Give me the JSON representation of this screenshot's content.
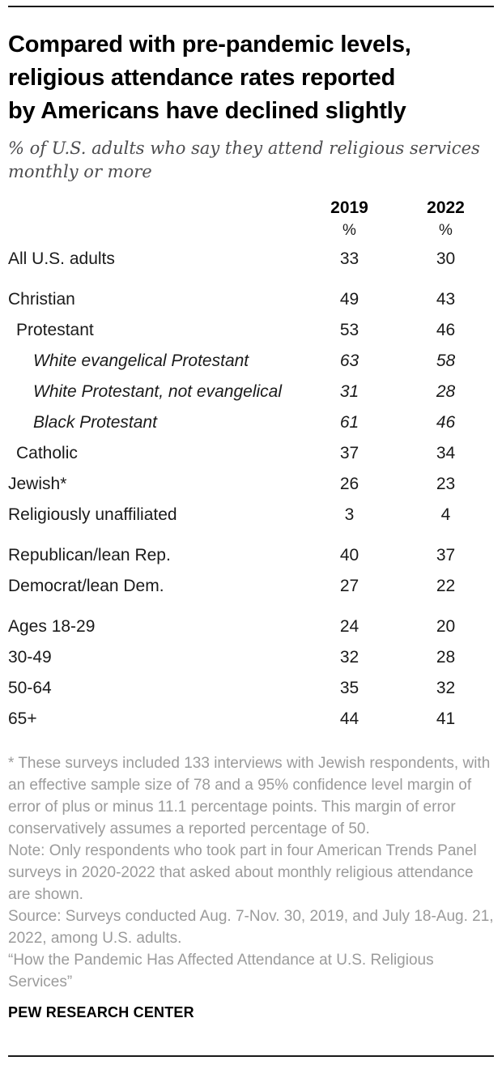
{
  "header": {
    "title_lines": [
      "Compared with pre-pandemic levels,",
      "religious attendance rates reported",
      "by Americans have declined slightly"
    ],
    "subtitle": "% of U.S. adults who say they attend religious services monthly or more"
  },
  "table": {
    "columns": [
      "2019",
      "2022"
    ],
    "percent_symbol": "%",
    "rows": [
      {
        "label": "All U.S. adults",
        "indent": 0,
        "italic": false,
        "group_start": false,
        "values": [
          33,
          30
        ]
      },
      {
        "label": "Christian",
        "indent": 0,
        "italic": false,
        "group_start": true,
        "values": [
          49,
          43
        ]
      },
      {
        "label": "Protestant",
        "indent": 1,
        "italic": false,
        "group_start": false,
        "values": [
          53,
          46
        ]
      },
      {
        "label": "White evangelical Protestant",
        "indent": 2,
        "italic": true,
        "group_start": false,
        "values": [
          63,
          58
        ]
      },
      {
        "label": "White Protestant, not evangelical",
        "indent": 2,
        "italic": true,
        "group_start": false,
        "values": [
          31,
          28
        ]
      },
      {
        "label": "Black Protestant",
        "indent": 2,
        "italic": true,
        "group_start": false,
        "values": [
          61,
          46
        ]
      },
      {
        "label": "Catholic",
        "indent": 1,
        "italic": false,
        "group_start": false,
        "values": [
          37,
          34
        ]
      },
      {
        "label": "Jewish*",
        "indent": 0,
        "italic": false,
        "group_start": false,
        "values": [
          26,
          23
        ]
      },
      {
        "label": "Religiously unaffiliated",
        "indent": 0,
        "italic": false,
        "group_start": false,
        "values": [
          3,
          4
        ]
      },
      {
        "label": "Republican/lean Rep.",
        "indent": 0,
        "italic": false,
        "group_start": true,
        "values": [
          40,
          37
        ]
      },
      {
        "label": "Democrat/lean Dem.",
        "indent": 0,
        "italic": false,
        "group_start": false,
        "values": [
          27,
          22
        ]
      },
      {
        "label": "Ages 18-29",
        "indent": 0,
        "italic": false,
        "group_start": true,
        "values": [
          24,
          20
        ]
      },
      {
        "label": "30-49",
        "indent": 0,
        "italic": false,
        "group_start": false,
        "values": [
          32,
          28
        ]
      },
      {
        "label": "50-64",
        "indent": 0,
        "italic": false,
        "group_start": false,
        "values": [
          35,
          32
        ]
      },
      {
        "label": "65+",
        "indent": 0,
        "italic": false,
        "group_start": false,
        "values": [
          44,
          41
        ]
      }
    ]
  },
  "footnotes": {
    "paragraphs": [
      "* These surveys included 133 interviews with Jewish respondents, with an effective sample size of 78 and a 95% confidence level margin of error of plus or minus 11.1 percentage points. This margin of error conservatively assumes a reported percentage of 50.",
      "Note: Only respondents who took part in four American Trends Panel surveys in 2020-2022 that asked about monthly religious attendance are shown.",
      "Source: Surveys conducted Aug. 7-Nov. 30, 2019, and July 18-Aug. 21, 2022, among U.S. adults.",
      "“How the Pandemic Has Affected Attendance at U.S. Religious Services”"
    ]
  },
  "footer": {
    "brand": "PEW RESEARCH CENTER"
  },
  "colors": {
    "rule": "#1a1a1a",
    "title": "#000000",
    "subtitle": "#4c4c4e",
    "body_text": "#1a1a1a",
    "footnote": "#9b9b9b"
  },
  "chart_data": {
    "type": "table",
    "title": "Compared with pre-pandemic levels, religious attendance rates reported by Americans have declined slightly",
    "subtitle": "% of U.S. adults who say they attend religious services monthly or more",
    "columns": [
      "2019",
      "2022"
    ],
    "categories": [
      "All U.S. adults",
      "Christian",
      "Protestant",
      "White evangelical Protestant",
      "White Protestant, not evangelical",
      "Black Protestant",
      "Catholic",
      "Jewish*",
      "Religiously unaffiliated",
      "Republican/lean Rep.",
      "Democrat/lean Dem.",
      "Ages 18-29",
      "30-49",
      "50-64",
      "65+"
    ],
    "series": [
      {
        "name": "2019",
        "values": [
          33,
          49,
          53,
          63,
          31,
          61,
          37,
          26,
          3,
          40,
          27,
          24,
          32,
          35,
          44
        ]
      },
      {
        "name": "2022",
        "values": [
          30,
          43,
          46,
          58,
          28,
          46,
          34,
          23,
          4,
          37,
          22,
          20,
          28,
          32,
          41
        ]
      }
    ],
    "source": "Pew Research Center"
  }
}
